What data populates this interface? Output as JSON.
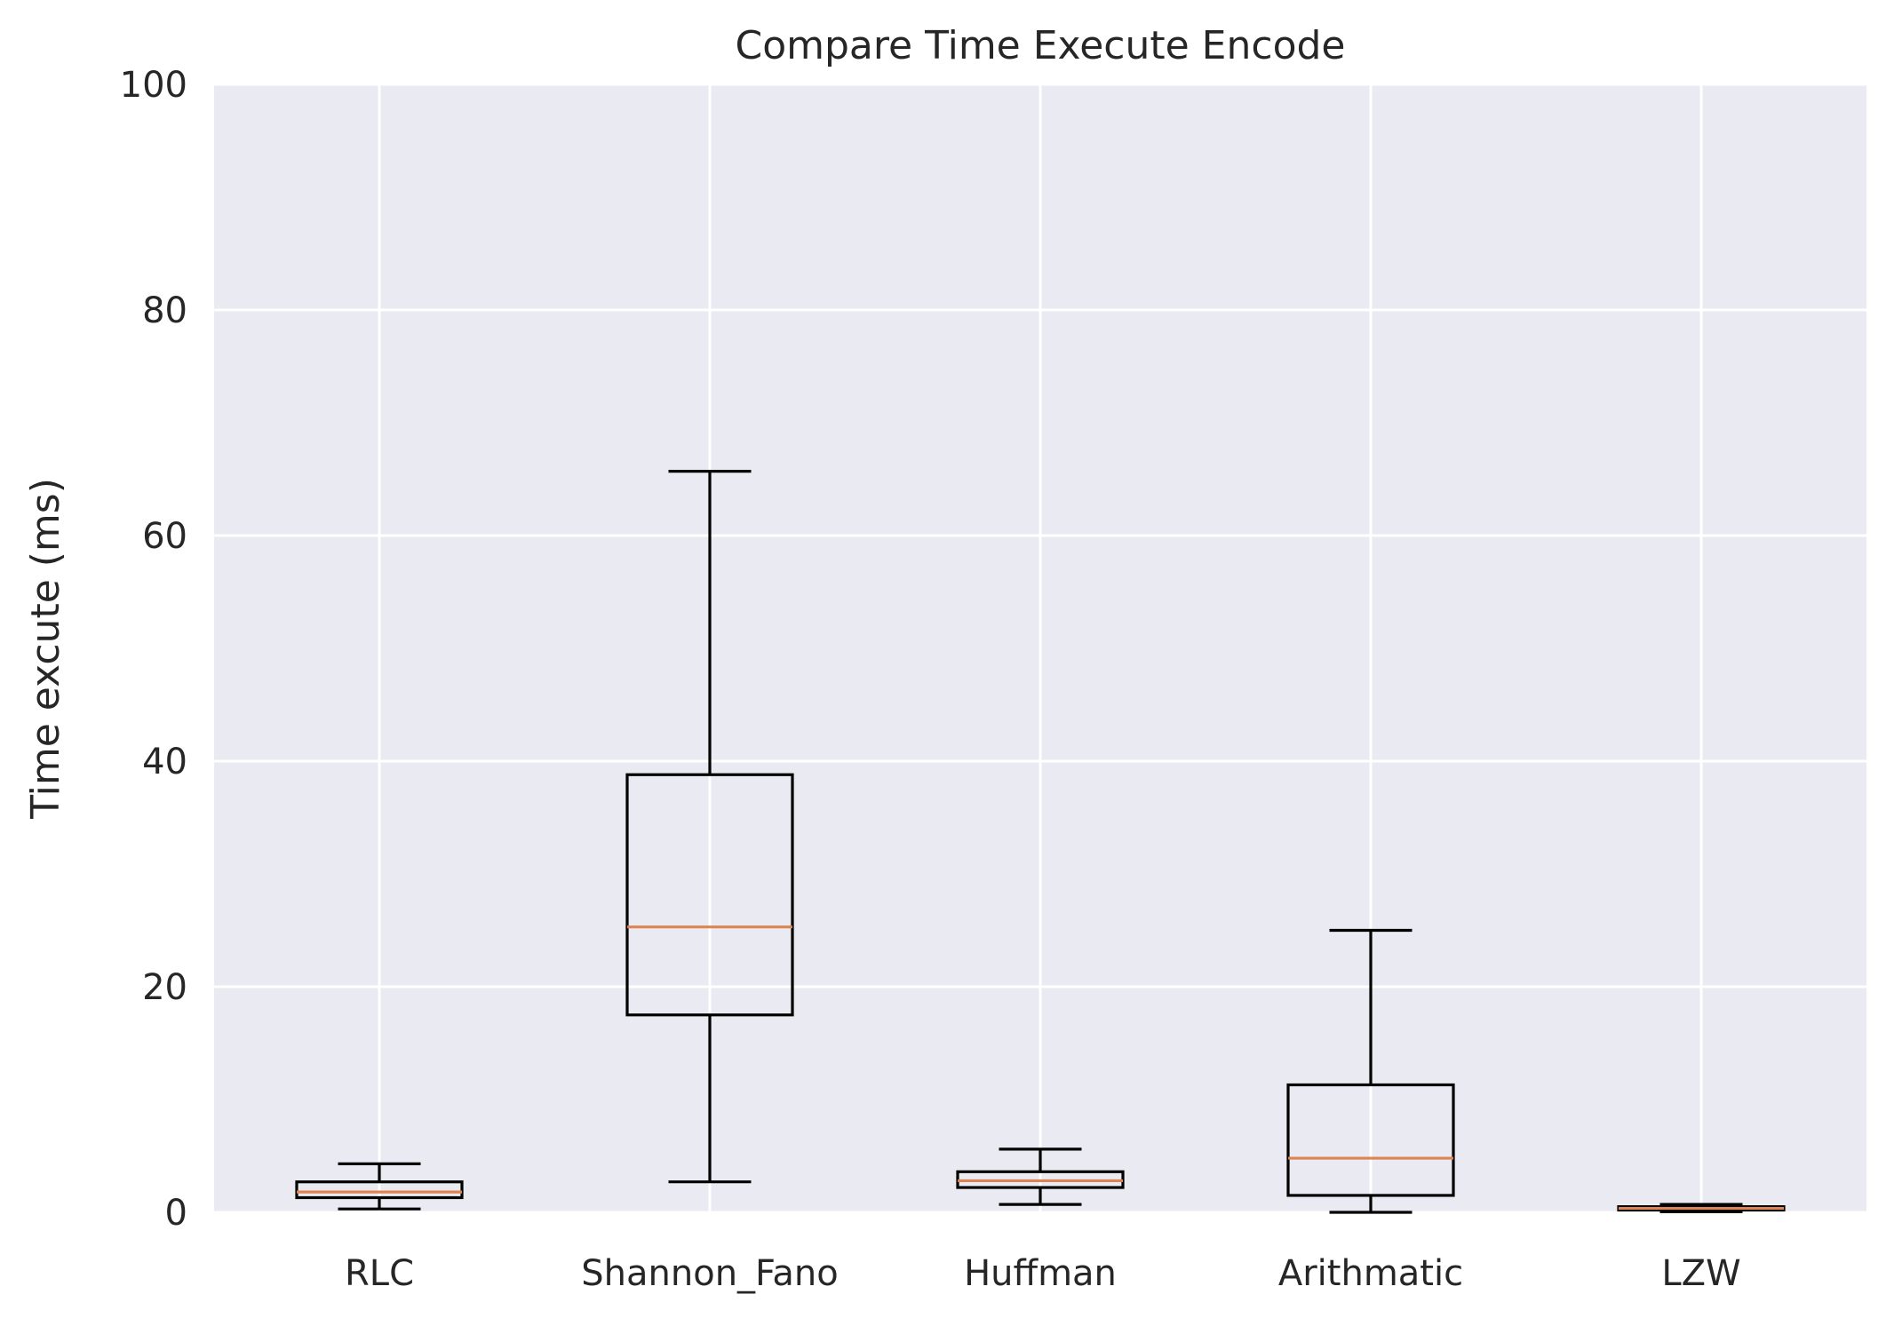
{
  "chart_data": {
    "type": "box",
    "title": "Compare Time Execute Encode",
    "xlabel": "",
    "ylabel": "Time excute (ms)",
    "ylim": [
      0,
      100
    ],
    "yticks": [
      0,
      20,
      40,
      60,
      80,
      100
    ],
    "grid": true,
    "categories": [
      "RLC",
      "Shannon_Fano",
      "Huffman",
      "Arithmatic",
      "LZW"
    ],
    "boxes": [
      {
        "label": "RLC",
        "whisker_low": 0.3,
        "q1": 1.3,
        "median": 1.8,
        "q3": 2.7,
        "whisker_high": 4.3
      },
      {
        "label": "Shannon_Fano",
        "whisker_low": 2.7,
        "q1": 17.5,
        "median": 25.3,
        "q3": 38.8,
        "whisker_high": 65.7
      },
      {
        "label": "Huffman",
        "whisker_low": 0.7,
        "q1": 2.2,
        "median": 2.8,
        "q3": 3.6,
        "whisker_high": 5.6
      },
      {
        "label": "Arithmatic",
        "whisker_low": 0.0,
        "q1": 1.5,
        "median": 4.8,
        "q3": 11.3,
        "whisker_high": 25.0
      },
      {
        "label": "LZW",
        "whisker_low": 0.05,
        "q1": 0.2,
        "median": 0.35,
        "q3": 0.5,
        "whisker_high": 0.7
      }
    ],
    "colors": {
      "background": "#eaeaf2",
      "grid": "#ffffff",
      "box": "#000000",
      "median": "#dd8452",
      "text": "#262626"
    }
  }
}
